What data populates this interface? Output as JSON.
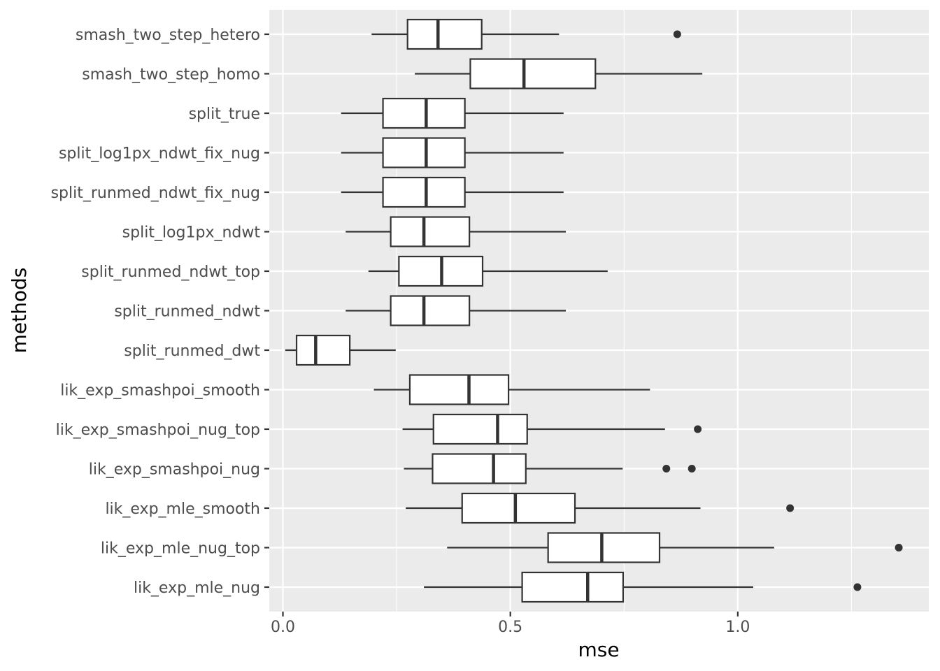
{
  "chart_data": {
    "type": "boxplot",
    "orientation": "horizontal",
    "xlabel": "mse",
    "ylabel": "methods",
    "xlim": [
      -0.03,
      1.42
    ],
    "xticks": [
      0.0,
      0.5,
      1.0
    ],
    "xtick_labels": [
      "0.0",
      "0.5",
      "1.0"
    ],
    "grid": true,
    "colors": {
      "panel": "#ebebeb",
      "grid_major": "#ffffff",
      "box_fill": "#ffffff",
      "box_line": "#333333",
      "tick_text": "#4d4d4d",
      "title_text": "#000000"
    },
    "categories": [
      "smash_two_step_hetero",
      "smash_two_step_homo",
      "split_true",
      "split_log1px_ndwt_fix_nug",
      "split_runmed_ndwt_fix_nug",
      "split_log1px_ndwt",
      "split_runmed_ndwt_top",
      "split_runmed_ndwt",
      "split_runmed_dwt",
      "lik_exp_smashpoi_smooth",
      "lik_exp_smashpoi_nug_top",
      "lik_exp_smashpoi_nug",
      "lik_exp_mle_smooth",
      "lik_exp_mle_nug_top",
      "lik_exp_mle_nug"
    ],
    "boxes": [
      {
        "min": 0.195,
        "q1": 0.274,
        "median": 0.341,
        "q3": 0.437,
        "max": 0.607,
        "outliers": [
          0.867
        ]
      },
      {
        "min": 0.29,
        "q1": 0.412,
        "median": 0.53,
        "q3": 0.687,
        "max": 0.922,
        "outliers": []
      },
      {
        "min": 0.128,
        "q1": 0.22,
        "median": 0.315,
        "q3": 0.4,
        "max": 0.617,
        "outliers": []
      },
      {
        "min": 0.128,
        "q1": 0.22,
        "median": 0.315,
        "q3": 0.4,
        "max": 0.617,
        "outliers": []
      },
      {
        "min": 0.128,
        "q1": 0.22,
        "median": 0.315,
        "q3": 0.4,
        "max": 0.617,
        "outliers": []
      },
      {
        "min": 0.138,
        "q1": 0.237,
        "median": 0.31,
        "q3": 0.41,
        "max": 0.622,
        "outliers": []
      },
      {
        "min": 0.188,
        "q1": 0.255,
        "median": 0.349,
        "q3": 0.439,
        "max": 0.714,
        "outliers": []
      },
      {
        "min": 0.138,
        "q1": 0.237,
        "median": 0.31,
        "q3": 0.41,
        "max": 0.622,
        "outliers": []
      },
      {
        "min": 0.005,
        "q1": 0.03,
        "median": 0.072,
        "q3": 0.147,
        "max": 0.248,
        "outliers": []
      },
      {
        "min": 0.2,
        "q1": 0.279,
        "median": 0.409,
        "q3": 0.496,
        "max": 0.807,
        "outliers": []
      },
      {
        "min": 0.263,
        "q1": 0.331,
        "median": 0.472,
        "q3": 0.537,
        "max": 0.84,
        "outliers": [
          0.912
        ]
      },
      {
        "min": 0.266,
        "q1": 0.329,
        "median": 0.463,
        "q3": 0.534,
        "max": 0.747,
        "outliers": [
          0.843,
          0.899
        ]
      },
      {
        "min": 0.27,
        "q1": 0.394,
        "median": 0.511,
        "q3": 0.642,
        "max": 0.918,
        "outliers": [
          1.115
        ]
      },
      {
        "min": 0.361,
        "q1": 0.583,
        "median": 0.701,
        "q3": 0.828,
        "max": 1.08,
        "outliers": [
          1.354
        ]
      },
      {
        "min": 0.31,
        "q1": 0.526,
        "median": 0.67,
        "q3": 0.748,
        "max": 1.034,
        "outliers": [
          1.263
        ]
      }
    ]
  }
}
